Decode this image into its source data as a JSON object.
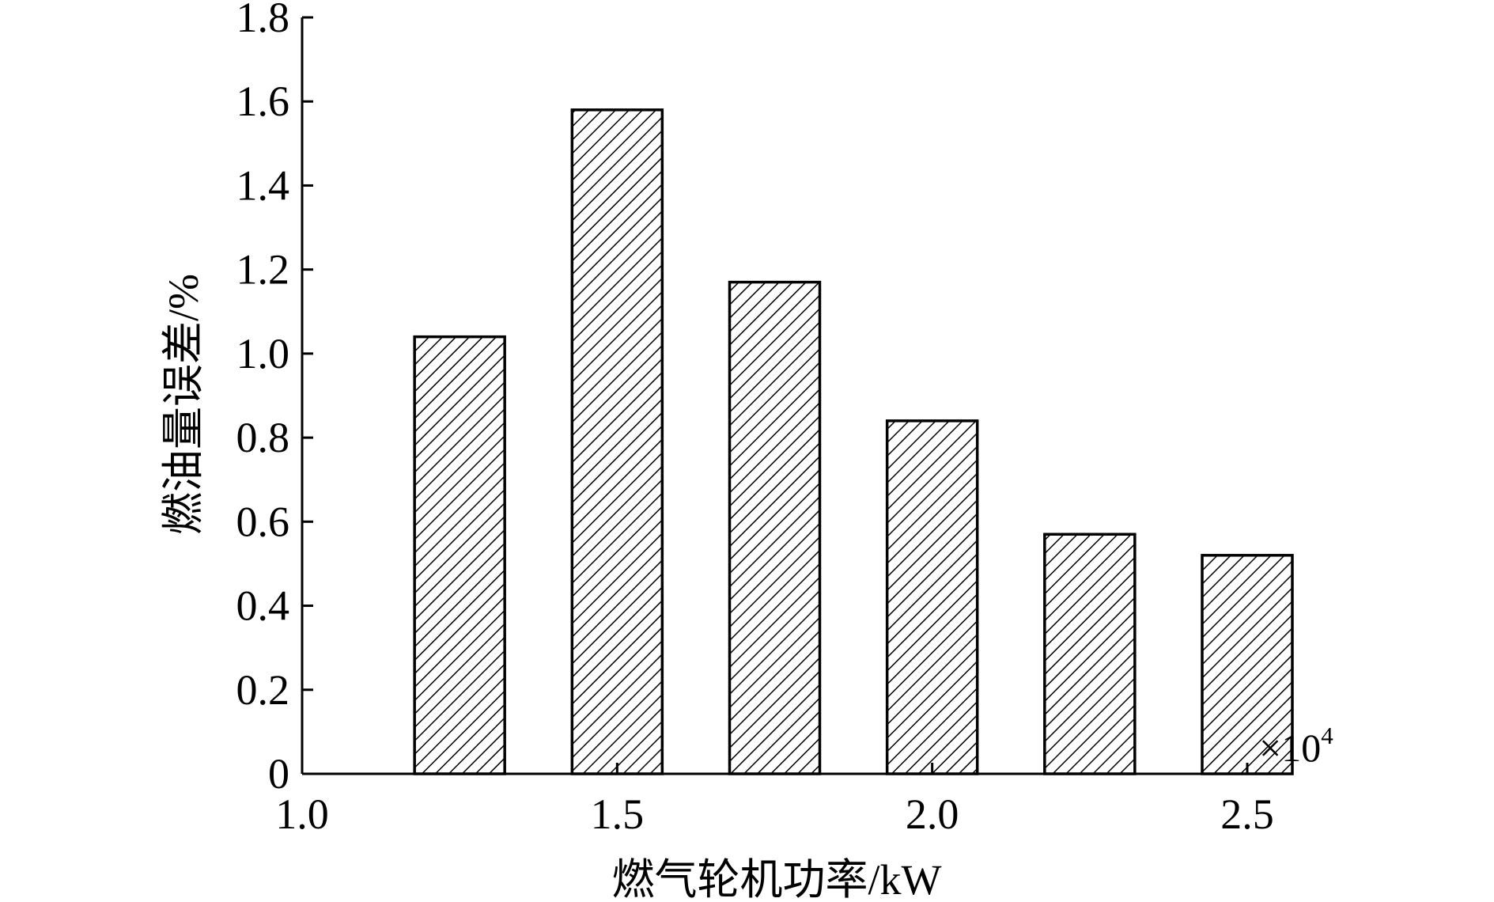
{
  "chart_data": {
    "type": "bar",
    "x": [
      1.25,
      1.5,
      1.75,
      2.0,
      2.25,
      2.5
    ],
    "values": [
      1.04,
      1.58,
      1.17,
      0.84,
      0.57,
      0.52
    ],
    "xlabel": "燃气轮机功率/kW",
    "ylabel": "燃油量误差/%",
    "x_multiplier_base": "×10",
    "x_multiplier_exp": "4",
    "xlim": [
      1.0,
      2.5
    ],
    "ylim": [
      0,
      1.8
    ],
    "xticks": [
      "1.0",
      "1.5",
      "2.0",
      "2.5"
    ],
    "yticks": [
      "0",
      "0.2",
      "0.4",
      "0.6",
      "0.8",
      "1.0",
      "1.2",
      "1.4",
      "1.6",
      "1.8"
    ],
    "grid": false,
    "bar_fill": "diagonal-hatch",
    "colors": {
      "bar_stroke": "#000000",
      "hatch": "#000000",
      "background": "#ffffff"
    }
  }
}
